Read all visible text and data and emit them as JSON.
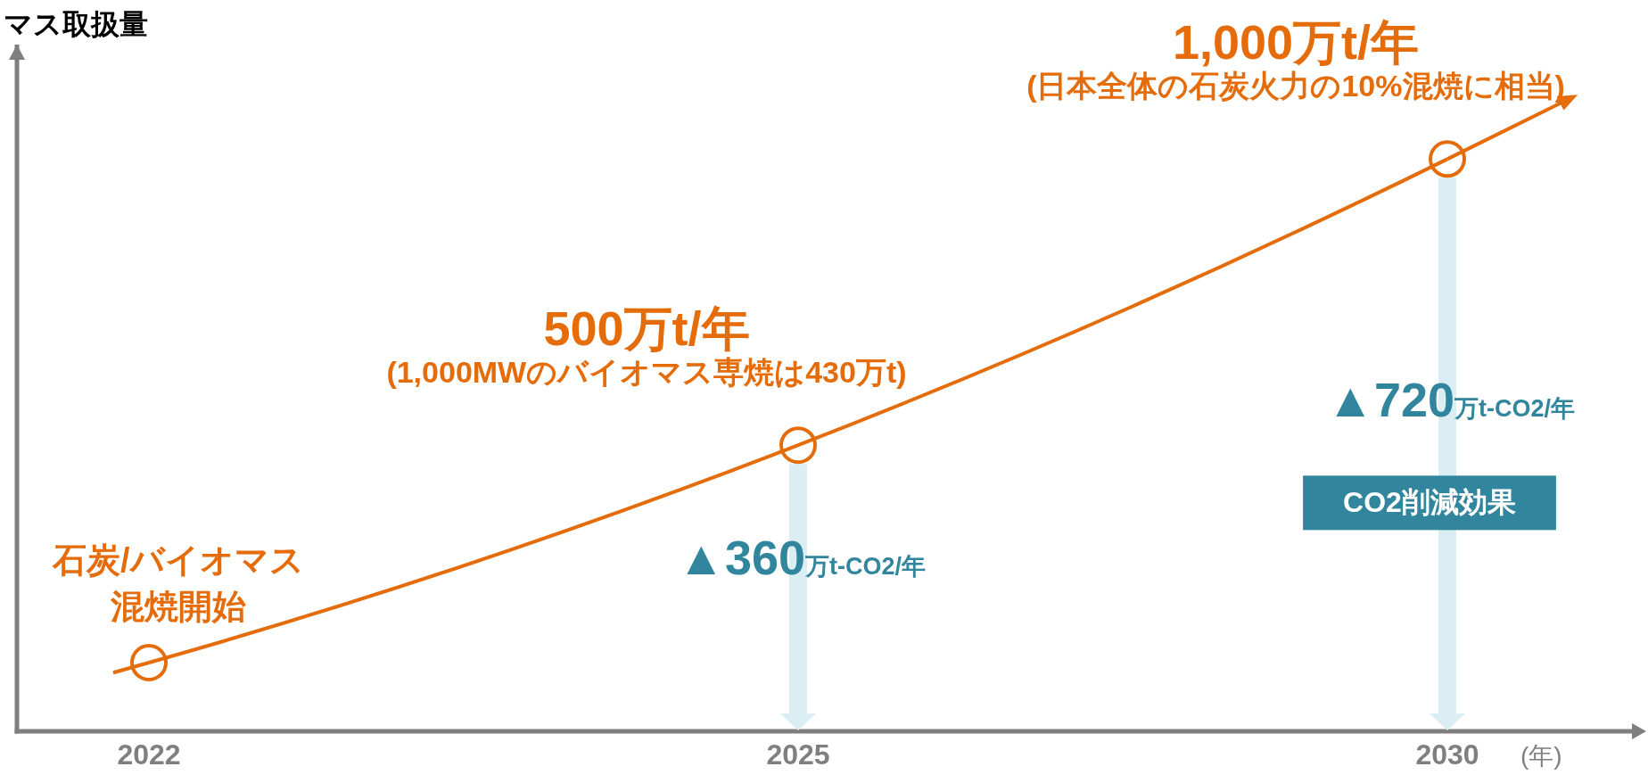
{
  "chart_data": {
    "type": "line",
    "ylabel": "マス取扱量",
    "xlabel": "(年)",
    "categories": [
      "2022",
      "2025",
      "2030"
    ],
    "series": [
      {
        "color": "#e46c0a",
        "values": [
          120,
          500,
          1000
        ],
        "value_labels": [
          null,
          "500万t/年",
          "1,000万t/年"
        ]
      }
    ],
    "ylim": [
      0,
      1200
    ],
    "tick_labels": "x",
    "marker": "circle",
    "line_style": "solid",
    "annotations": [
      {
        "text": "石炭/バイオマス混焼開始",
        "x": "2022",
        "y": 120
      },
      {
        "text": "(1,000MWのバイオマス専焼は430万t)",
        "x": "2025",
        "y": 500
      },
      {
        "text": "(日本全体の石炭火力の10%混焼に相当)",
        "x": "2030",
        "y": 1000
      },
      "▲360万t-CO2/年",
      "▲720万t-CO2/年",
      "CO2削減効果"
    ]
  }
}
